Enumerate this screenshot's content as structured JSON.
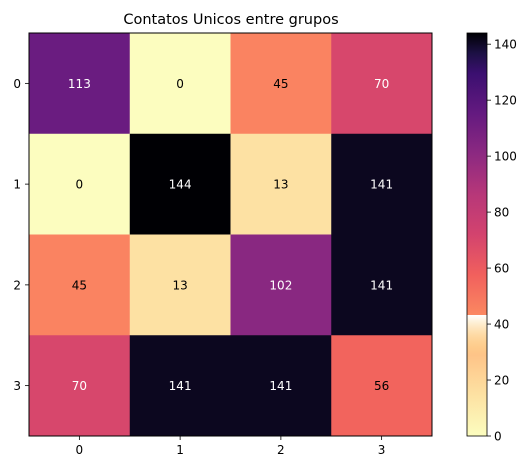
{
  "chart_data": {
    "type": "heatmap",
    "title": "Contatos Unicos entre grupos",
    "xlabel": "",
    "ylabel": "",
    "x_ticks": [
      "0",
      "1",
      "2",
      "3"
    ],
    "y_ticks": [
      "0",
      "1",
      "2",
      "3"
    ],
    "matrix": [
      [
        113,
        0,
        45,
        70
      ],
      [
        0,
        144,
        13,
        141
      ],
      [
        45,
        13,
        102,
        141
      ],
      [
        70,
        141,
        141,
        56
      ]
    ],
    "colormap": "magma_r",
    "colorbar": {
      "min": 0,
      "max": 144,
      "ticks": [
        0,
        20,
        40,
        60,
        80,
        100,
        120,
        140
      ]
    },
    "grid": false
  }
}
